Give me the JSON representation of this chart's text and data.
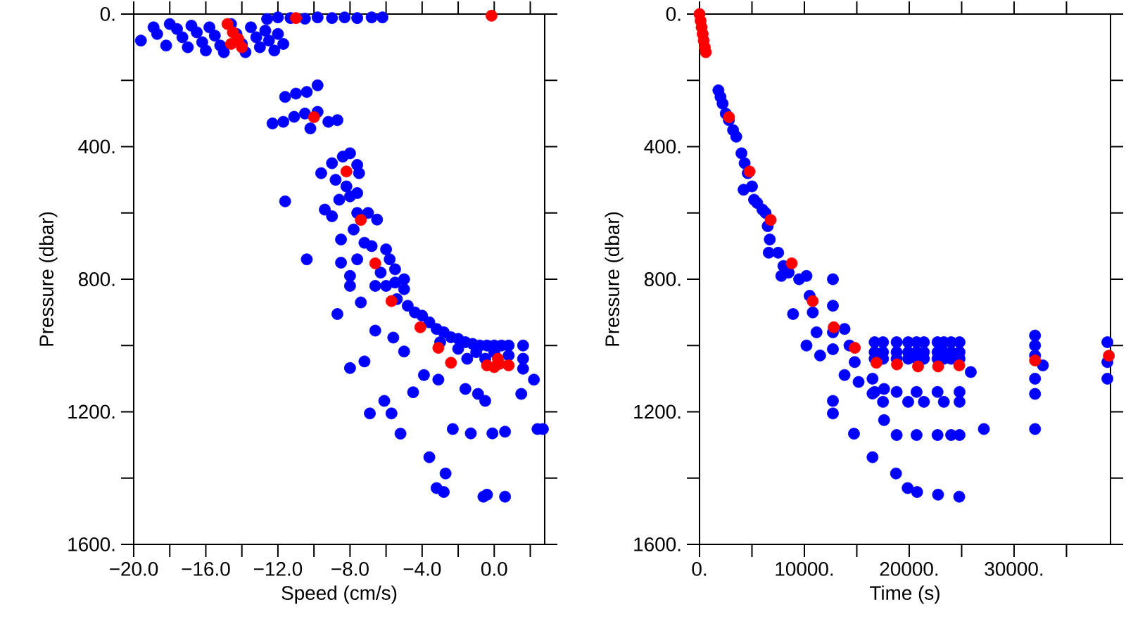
{
  "chart_data": [
    {
      "type": "scatter",
      "xlabel": "Speed (cm/s)",
      "ylabel": "Pressure (dbar)",
      "marker": "circle",
      "xlim": [
        -20,
        2.8
      ],
      "ylim": [
        1600,
        0
      ],
      "xticks": [
        {
          "value": -20,
          "label": "−20.0"
        },
        {
          "value": -18,
          "label": null
        },
        {
          "value": -16,
          "label": "−16.0"
        },
        {
          "value": -14,
          "label": null
        },
        {
          "value": -12,
          "label": "−12.0"
        },
        {
          "value": -10,
          "label": null
        },
        {
          "value": -8,
          "label": "−8.0"
        },
        {
          "value": -6,
          "label": null
        },
        {
          "value": -4,
          "label": "−4.0"
        },
        {
          "value": -2,
          "label": null
        },
        {
          "value": 0,
          "label": "0.0"
        },
        {
          "value": 2,
          "label": null
        }
      ],
      "yticks": [
        {
          "value": 0,
          "label": "0."
        },
        {
          "value": 200,
          "label": null
        },
        {
          "value": 400,
          "label": "400."
        },
        {
          "value": 600,
          "label": null
        },
        {
          "value": 800,
          "label": "800."
        },
        {
          "value": 1000,
          "label": null
        },
        {
          "value": 1200,
          "label": "1200."
        },
        {
          "value": 1400,
          "label": null
        },
        {
          "value": 1600,
          "label": "1600."
        }
      ],
      "series": [
        {
          "color": "#0000ff",
          "x": [
            -19.6,
            -18.9,
            -18.7,
            -18.2,
            -18.0,
            -17.6,
            -17.3,
            -17.0,
            -16.8,
            -16.5,
            -16.2,
            -16.0,
            -15.8,
            -15.5,
            -15.2,
            -15.0,
            -14.6,
            -14.3,
            -14.0,
            -13.8,
            -13.5,
            -13.2,
            -13.0,
            -12.7,
            -12.5,
            -12.2,
            -12.0,
            -11.7,
            -12.6,
            -12.0,
            -11.3,
            -10.5,
            -9.8,
            -9.0,
            -8.3,
            -7.6,
            -6.8,
            -6.2,
            -11.6,
            -11.0,
            -10.4,
            -9.8,
            -12.3,
            -11.7,
            -11.1,
            -10.5,
            -9.8,
            -9.2,
            -8.7,
            -10.2,
            -9.6,
            -9.0,
            -8.4,
            -8.0,
            -7.6,
            -8.8,
            -8.2,
            -7.5,
            -11.6,
            -9.4,
            -8.6,
            -8.0,
            -7.6,
            -9.0,
            -7.6,
            -7.0,
            -6.5,
            -7.8,
            -8.5,
            -7.2,
            -10.4,
            -8.5,
            -7.6,
            -6.8,
            -6.0,
            -5.8,
            -5.5,
            -6.3,
            -8.0,
            -5.0,
            -6.0,
            -5.5,
            -5.0,
            -5.4,
            -4.8,
            -4.4,
            -4.0,
            -3.6,
            -3.2,
            -2.8,
            -2.4,
            -2.0,
            -1.6,
            -1.2,
            -0.8,
            -0.4,
            0.0,
            0.4,
            0.8,
            -3.0,
            -2.0,
            -1.0,
            0.0,
            0.8,
            -1.5,
            -0.5,
            1.6,
            1.6,
            1.6,
            -8.7,
            -8.0,
            -7.2,
            -6.9,
            -6.1,
            -5.7,
            -5.2,
            -4.5,
            -3.6,
            -2.7,
            -3.2,
            -2.8,
            -0.6,
            -0.4,
            0.6,
            -2.3,
            -1.3,
            -0.1,
            0.6,
            2.4,
            2.7,
            1.5,
            2.2,
            -1.6,
            -0.5,
            -0.9,
            -3.9,
            -3.1,
            -5.0,
            -5.6,
            -6.6,
            -7.4,
            -8.0,
            -6.6
          ],
          "values": [
            80,
            40,
            60,
            95,
            30,
            45,
            70,
            100,
            35,
            55,
            85,
            110,
            40,
            65,
            95,
            115,
            30,
            60,
            90,
            115,
            40,
            70,
            100,
            50,
            80,
            110,
            60,
            90,
            15,
            10,
            12,
            14,
            10,
            12,
            10,
            12,
            10,
            10,
            250,
            240,
            235,
            215,
            330,
            325,
            310,
            300,
            295,
            325,
            320,
            345,
            480,
            450,
            430,
            420,
            455,
            500,
            520,
            480,
            565,
            590,
            560,
            550,
            540,
            610,
            600,
            600,
            620,
            650,
            680,
            690,
            740,
            750,
            740,
            700,
            710,
            740,
            770,
            780,
            790,
            800,
            820,
            810,
            830,
            860,
            880,
            900,
            910,
            930,
            950,
            960,
            975,
            980,
            990,
            995,
            1000,
            1000,
            1000,
            1000,
            1000,
            990,
            1010,
            1020,
            1020,
            1030,
            1040,
            1040,
            1000,
            1040,
            1070,
            905,
            1068,
            1048,
            1205,
            1167,
            1205,
            1266,
            1141,
            1337,
            1386,
            1430,
            1442,
            1456,
            1450,
            1456,
            1252,
            1265,
            1265,
            1260,
            1252,
            1252,
            1146,
            1103,
            1131,
            1167,
            1146,
            1089,
            1103,
            1018,
            976,
            955,
            870,
            820,
            820
          ]
        },
        {
          "color": "#ff0000",
          "x": [
            -11.0,
            -0.15,
            -14.8,
            -14.5,
            -14.2,
            -14.0,
            -14.6,
            -10.0,
            -8.2,
            -7.4,
            -6.6,
            -5.7,
            -4.1,
            -3.1,
            -2.4,
            -0.4,
            0.0,
            0.2,
            0.3,
            0.8
          ],
          "values": [
            12,
            5,
            30,
            55,
            75,
            100,
            90,
            311,
            475,
            621,
            752,
            866,
            945,
            1007,
            1052,
            1060,
            1065,
            1040,
            1055,
            1060
          ]
        }
      ]
    },
    {
      "type": "scatter",
      "xlabel": "Time (s)",
      "ylabel": "Pressure (dbar)",
      "marker": "circle",
      "xlim": [
        0,
        39200
      ],
      "ylim": [
        1600,
        0
      ],
      "xticks": [
        {
          "value": 0,
          "label": "0."
        },
        {
          "value": 5000,
          "label": null
        },
        {
          "value": 10000,
          "label": "10000."
        },
        {
          "value": 15000,
          "label": null
        },
        {
          "value": 20000,
          "label": "20000."
        },
        {
          "value": 25000,
          "label": null
        },
        {
          "value": 30000,
          "label": "30000."
        },
        {
          "value": 35000,
          "label": null
        }
      ],
      "yticks": [
        {
          "value": 0,
          "label": "0."
        },
        {
          "value": 200,
          "label": null
        },
        {
          "value": 400,
          "label": "400."
        },
        {
          "value": 600,
          "label": null
        },
        {
          "value": 800,
          "label": "800."
        },
        {
          "value": 1000,
          "label": null
        },
        {
          "value": 1200,
          "label": "1200."
        },
        {
          "value": 1400,
          "label": null
        },
        {
          "value": 1600,
          "label": "1600."
        }
      ],
      "series": [
        {
          "color": "#0000ff",
          "x": [
            1800,
            2000,
            2200,
            2500,
            2800,
            3200,
            3500,
            4000,
            4300,
            4600,
            4200,
            5000,
            5500,
            6000,
            5200,
            6300,
            6500,
            6700,
            6600,
            7500,
            8000,
            8500,
            7800,
            9500,
            8920,
            10200,
            10500,
            10800,
            11160,
            10200,
            11500,
            12720,
            12720,
            12720,
            12720,
            12720,
            12720,
            13830,
            14300,
            14800,
            15170,
            13830,
            14730,
            16500,
            18740,
            19850,
            20750,
            22750,
            24770,
            16700,
            16700,
            16700,
            17500,
            17500,
            17500,
            18800,
            18800,
            18800,
            19900,
            19900,
            19900,
            20700,
            20700,
            20700,
            21400,
            21400,
            21400,
            22700,
            22700,
            22700,
            23300,
            23300,
            23300,
            24000,
            24000,
            24000,
            24800,
            24800,
            24800,
            16700,
            18800,
            20700,
            22700,
            24800,
            17500,
            19900,
            21400,
            23300,
            24800,
            18800,
            20700,
            22700,
            24000,
            24800,
            25870,
            27120,
            32000,
            32000,
            32000,
            32000,
            32000,
            32000,
            32750,
            38900,
            38900,
            38900,
            16500,
            16500,
            17600,
            17600
          ],
          "values": [
            230,
            250,
            270,
            300,
            320,
            350,
            370,
            420,
            450,
            480,
            530,
            520,
            570,
            590,
            560,
            600,
            640,
            680,
            720,
            720,
            760,
            780,
            790,
            800,
            905,
            790,
            850,
            900,
            960,
            1000,
            1030,
            800,
            880,
            960,
            1011,
            1167,
            1205,
            950,
            1000,
            1050,
            1110,
            1089,
            1266,
            1337,
            1386,
            1430,
            1442,
            1450,
            1456,
            990,
            1020,
            1040,
            990,
            1020,
            1040,
            990,
            1020,
            1040,
            990,
            1020,
            1040,
            990,
            1020,
            1040,
            990,
            1020,
            1040,
            990,
            1020,
            1040,
            990,
            1020,
            1040,
            990,
            1020,
            1040,
            990,
            1020,
            1040,
            1140,
            1140,
            1140,
            1140,
            1140,
            1170,
            1170,
            1170,
            1170,
            1170,
            1270,
            1270,
            1270,
            1270,
            1270,
            1080,
            1252,
            970,
            1000,
            1030,
            1100,
            1146,
            1252,
            1060,
            990,
            1050,
            1100,
            1100,
            1145,
            1131,
            1225
          ]
        },
        {
          "color": "#ff0000",
          "x": [
            0,
            100,
            200,
            300,
            400,
            500,
            600,
            2810,
            4770,
            6780,
            8790,
            10790,
            12800,
            14810,
            16870,
            18830,
            20840,
            22760,
            24770,
            32000,
            39040
          ],
          "values": [
            0,
            20,
            40,
            60,
            80,
            100,
            115,
            311,
            475,
            621,
            752,
            866,
            945,
            1007,
            1052,
            1057,
            1063,
            1063,
            1060,
            1045,
            1031
          ]
        }
      ]
    }
  ]
}
